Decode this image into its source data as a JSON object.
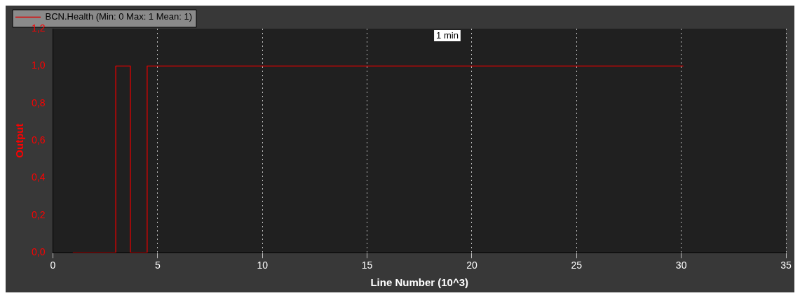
{
  "chart_data": {
    "type": "step",
    "xlabel": "Line Number (10^3)",
    "ylabel": "Output",
    "x": [
      0.95,
      3.0,
      3.7,
      4.5,
      30.1
    ],
    "series": [
      {
        "name": "BCN.Health (Min: 0 Max: 1 Mean: 1)",
        "color": "#e00000",
        "values": [
          0,
          1,
          0,
          1,
          1
        ]
      }
    ],
    "xlim": [
      0,
      35
    ],
    "xticks": [
      0,
      5,
      10,
      15,
      20,
      25,
      30,
      35
    ],
    "ylim": [
      0,
      1.2
    ],
    "yticks": [
      {
        "value": 0,
        "label": "0,0"
      },
      {
        "value": 0.2,
        "label": "0,2"
      },
      {
        "value": 0.4,
        "label": "0,4"
      },
      {
        "value": 0.6,
        "label": "0,6"
      },
      {
        "value": 0.8,
        "label": "0,8"
      },
      {
        "value": 1,
        "label": "1,0"
      },
      {
        "value": 1.2,
        "label": "1,2"
      }
    ],
    "grid": "x",
    "legend": "top left",
    "marker": "none",
    "line_style": "solid",
    "annotations": [
      "1 min"
    ]
  }
}
